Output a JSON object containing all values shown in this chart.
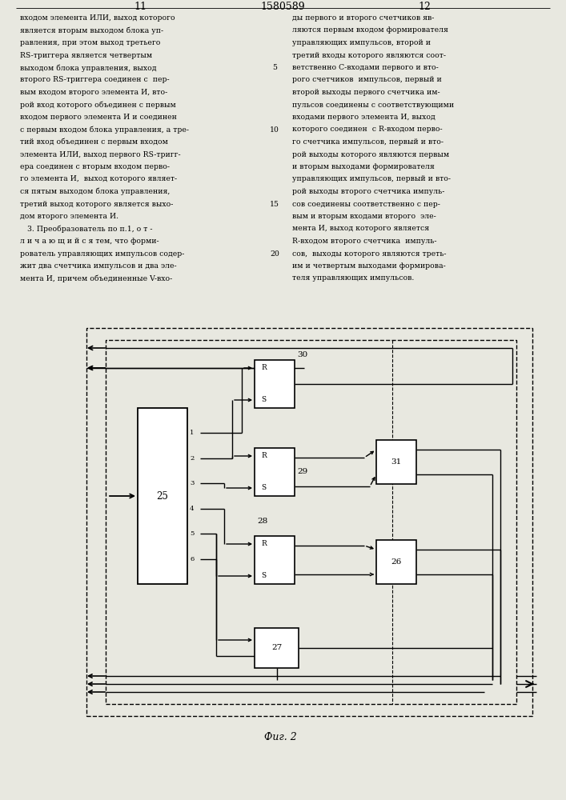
{
  "page_number_left": "11",
  "page_number_right": "12",
  "patent_number": "1580589",
  "text_left": [
    "входом элемента ИЛИ, выход которого",
    "является вторым выходом блока уп-",
    "равления, при этом выход третьего",
    "RS-триггера является четвертым",
    "выходом блока управления, выход",
    "второго RS-триггера соединен с  пер-",
    "вым входом второго элемента И, вто-",
    "рой вход которого объединен с первым",
    "входом первого элемента И и соединен",
    "с первым входом блока управления, а тре-",
    "тий вход объединен с первым входом",
    "элемента ИЛИ, выход первого RS-тригг-",
    "ера соединен с вторым входом перво-",
    "го элемента И,  выход которого являет-",
    "ся пятым выходом блока управления,",
    "третий выход которого является выхо-",
    "дом второго элемента И.",
    "   3. Преобразователь по п.1, о т -",
    "л и ч а ю щ и й с я тем, что форми-",
    "рователь управляющих импульсов содер-",
    "жит два счетчика импульсов и два эле-",
    "мента И, причем объединенные V-вхо-"
  ],
  "text_right": [
    "ды первого и второго счетчиков яв-",
    "ляются первым входом формирователя",
    "управляющих импульсов, второй и",
    "третий входы которого являются соот-",
    "ветственно С-входами первого и вто-",
    "рого счетчиков  импульсов, первый и",
    "второй выходы первого счетчика им-",
    "пульсов соединены с соответствующими",
    "входами первого элемента И, выход",
    "которого соединен  с R-входом перво-",
    "го счетчика импульсов, первый и вто-",
    "рой выходы которого являются первым",
    "и вторым выходами формирователя",
    "управляющих импульсов, первый и вто-",
    "рой выходы второго счетчика импуль-",
    "сов соединены соответственно с пер-",
    "вым и вторым входами второго  эле-",
    "мента И, выход которого является",
    "R-входом второго счетчика  импуль-",
    "сов,  выходы которого являются треть-",
    "им и четвертым выходами формирова-",
    "теля управляющих импульсов."
  ],
  "line_numbers": [
    5,
    10,
    15,
    20
  ],
  "line_number_rows": [
    4,
    9,
    15,
    19
  ],
  "fig_caption": "Фиг. 2",
  "bg_color": "#e8e8e0",
  "text_color": "#000000"
}
